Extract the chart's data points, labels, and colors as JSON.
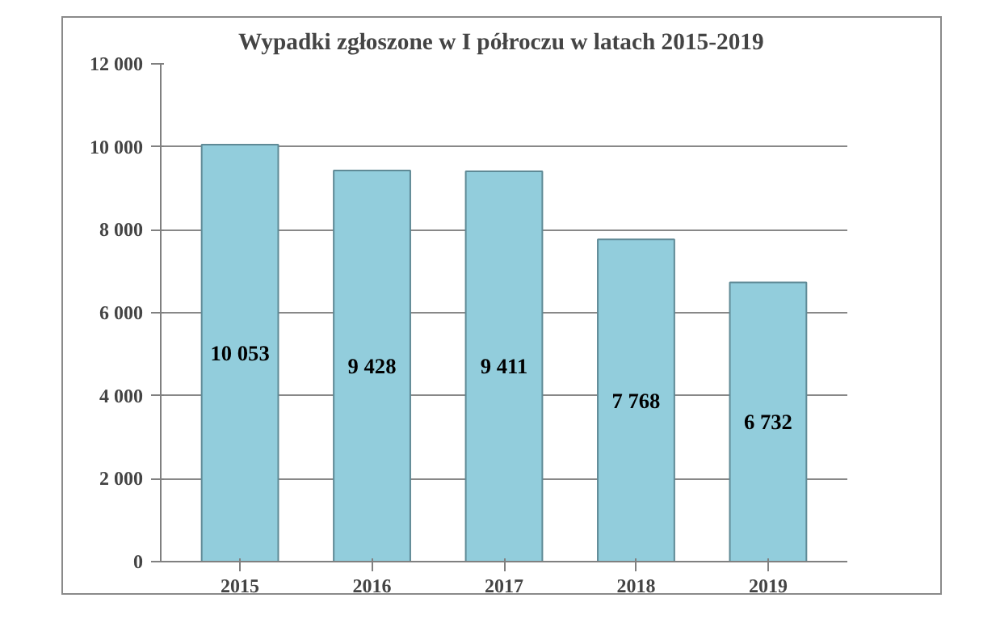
{
  "chart_data": {
    "type": "bar",
    "title": "Wypadki  zgłoszone w I półroczu w latach 2015-2019",
    "categories": [
      "2015",
      "2016",
      "2017",
      "2018",
      "2019"
    ],
    "values": [
      10053,
      9428,
      9411,
      7768,
      6732
    ],
    "value_labels": [
      "10 053",
      "9 428",
      "9 411",
      "7 768",
      "6 732"
    ],
    "color": "#92cddc",
    "ylim": [
      0,
      12000
    ],
    "yticks": [
      {
        "value": 0,
        "label": "0"
      },
      {
        "value": 2000,
        "label": "2 000"
      },
      {
        "value": 4000,
        "label": "4 000"
      },
      {
        "value": 6000,
        "label": "6 000"
      },
      {
        "value": 8000,
        "label": "8 000"
      },
      {
        "value": 10000,
        "label": "10 000"
      },
      {
        "value": 12000,
        "label": "12 000"
      }
    ],
    "grid": "y"
  }
}
